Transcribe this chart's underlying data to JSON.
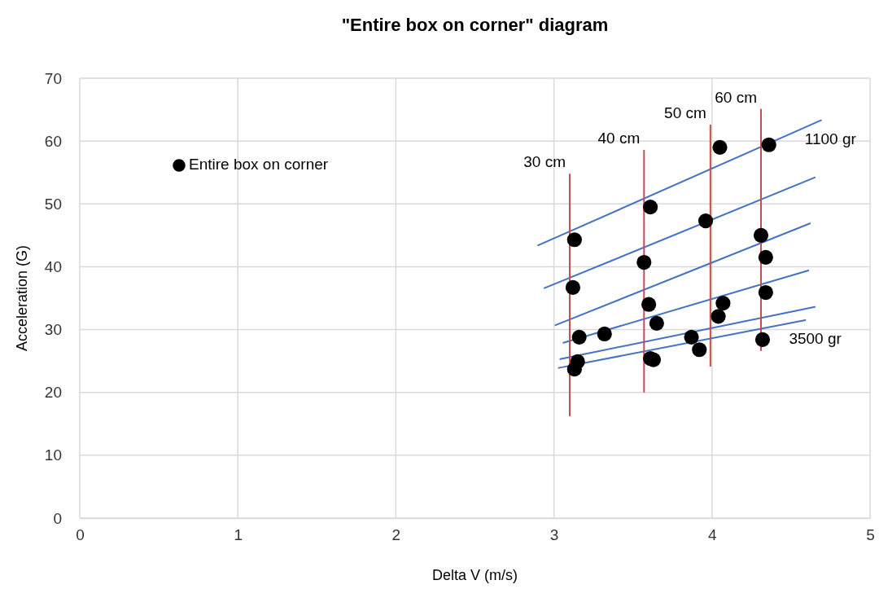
{
  "chart_data": {
    "type": "scatter",
    "title": "\"Entire box on corner\" diagram",
    "xlabel": "Delta V (m/s)",
    "ylabel": "Acceleration (G)",
    "xlim": [
      0,
      5
    ],
    "xticks": [
      0,
      1,
      2,
      3,
      4,
      5
    ],
    "ylim": [
      0,
      70
    ],
    "yticks": [
      0,
      10,
      20,
      30,
      40,
      50,
      60,
      70
    ],
    "grid": true,
    "legend": "top left",
    "series": [
      {
        "name": "Entire box on corner",
        "marker": "circle",
        "color": "#000000",
        "x": [
          4.05,
          4.36,
          3.61,
          3.96,
          3.13,
          4.31,
          4.34,
          3.57,
          3.12,
          4.34,
          3.6,
          4.07,
          4.04,
          3.65,
          3.16,
          3.32,
          3.87,
          4.32,
          3.92,
          3.15,
          3.13,
          3.61,
          3.63
        ],
        "values": [
          59,
          59.4,
          49.5,
          47.3,
          44.3,
          45,
          41.5,
          40.7,
          36.7,
          35.9,
          34,
          34.2,
          32.1,
          31,
          28.8,
          29.3,
          28.8,
          28.4,
          26.8,
          24.9,
          23.7,
          25.4,
          25.2
        ]
      },
      {
        "name": "1100 gr",
        "type": "line",
        "color": "#4472c4",
        "x": [
          2.9,
          4.69
        ],
        "values": [
          43.4,
          63.3
        ]
      },
      {
        "type": "line",
        "color": "#4472c4",
        "x": [
          2.94,
          4.65
        ],
        "values": [
          36.6,
          54.2
        ]
      },
      {
        "type": "line",
        "color": "#4472c4",
        "x": [
          3.01,
          4.62
        ],
        "values": [
          30.7,
          46.9
        ]
      },
      {
        "type": "line",
        "color": "#4472c4",
        "x": [
          3.06,
          4.61
        ],
        "values": [
          27.9,
          39.4
        ]
      },
      {
        "type": "line",
        "color": "#4472c4",
        "x": [
          3.04,
          4.65
        ],
        "values": [
          25.3,
          33.6
        ]
      },
      {
        "name": "3500 gr",
        "type": "line",
        "color": "#4472c4",
        "x": [
          3.03,
          4.59
        ],
        "values": [
          23.9,
          31.5
        ]
      },
      {
        "name": "30 cm",
        "type": "line",
        "color": "#c0504d",
        "x": [
          3.1,
          3.1
        ],
        "values": [
          16.3,
          54.7
        ]
      },
      {
        "name": "40 cm",
        "type": "line",
        "color": "#c0504d",
        "x": [
          3.57,
          3.57
        ],
        "values": [
          20.1,
          58.5
        ]
      },
      {
        "name": "50 cm",
        "type": "line",
        "color": "#c0504d",
        "x": [
          3.99,
          3.99
        ],
        "values": [
          24.2,
          62.5
        ]
      },
      {
        "name": "60 cm",
        "type": "line",
        "color": "#c0504d",
        "x": [
          4.31,
          4.31
        ],
        "values": [
          26.7,
          65
        ]
      }
    ]
  }
}
